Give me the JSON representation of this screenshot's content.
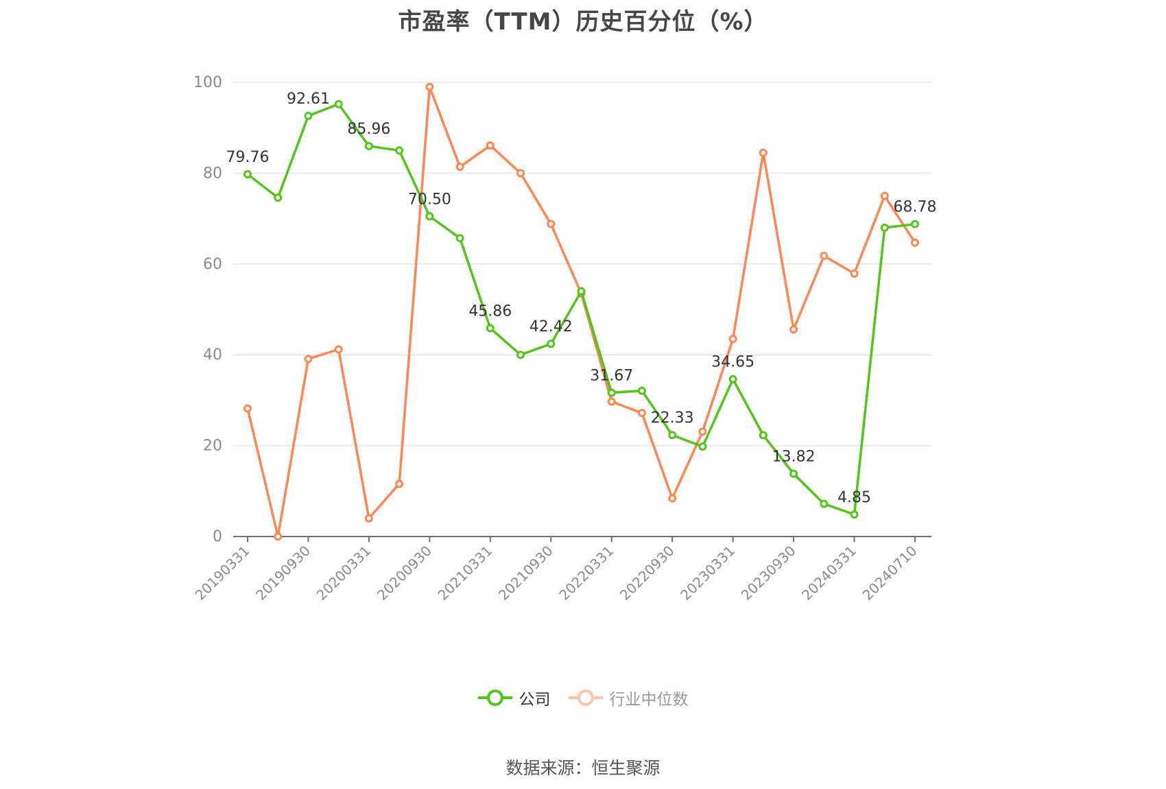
{
  "title": "市盈率（TTM）历史百分位（%）",
  "legend": {
    "company_label": "公司",
    "industry_label": "行业中位数"
  },
  "source": "数据来源：恒生聚源",
  "colors": {
    "company": "#52c41a",
    "industry": "#ff8552",
    "grid": "#e0e6f1",
    "axis": "#6e7079"
  },
  "chart_data": {
    "type": "line",
    "title": "市盈率（TTM）历史百分位（%）",
    "xlabel": "",
    "ylabel": "",
    "ylim": [
      0,
      100
    ],
    "yticks": [
      0,
      20,
      40,
      60,
      80,
      100
    ],
    "grid": true,
    "legend_position": "bottom",
    "x": [
      "20190331",
      "20190630",
      "20190930",
      "20191231",
      "20200331",
      "20200630",
      "20200930",
      "20201231",
      "20210331",
      "20210630",
      "20210930",
      "20211231",
      "20220331",
      "20220630",
      "20220930",
      "20221231",
      "20230331",
      "20230630",
      "20230930",
      "20231231",
      "20240331",
      "20240630",
      "20240710"
    ],
    "xtick_labels": [
      "20190331",
      "20190930",
      "20200331",
      "20200930",
      "20210331",
      "20210930",
      "20220331",
      "20220930",
      "20230331",
      "20230930",
      "20240331",
      "20240710"
    ],
    "series": [
      {
        "name": "公司",
        "values": [
          79.76,
          74.6,
          92.61,
          95.2,
          85.96,
          85.0,
          70.5,
          65.7,
          45.86,
          40.0,
          42.42,
          54.0,
          31.67,
          32.1,
          22.33,
          19.8,
          34.65,
          22.3,
          13.82,
          7.2,
          4.85,
          68.0,
          68.78
        ],
        "labels": {
          "0": "79.76",
          "2": "92.61",
          "4": "85.96",
          "6": "70.50",
          "8": "45.86",
          "10": "42.42",
          "12": "31.67",
          "14": "22.33",
          "16": "34.65",
          "18": "13.82",
          "20": "4.85",
          "22": "68.78"
        }
      },
      {
        "name": "行业中位数",
        "values": [
          28.2,
          0,
          39.1,
          41.2,
          4.0,
          11.6,
          99.0,
          81.4,
          86.1,
          80.0,
          68.8,
          53.5,
          29.7,
          27.2,
          8.4,
          23.1,
          43.5,
          84.5,
          45.6,
          61.8,
          57.9,
          75.0,
          64.7
        ]
      }
    ]
  }
}
